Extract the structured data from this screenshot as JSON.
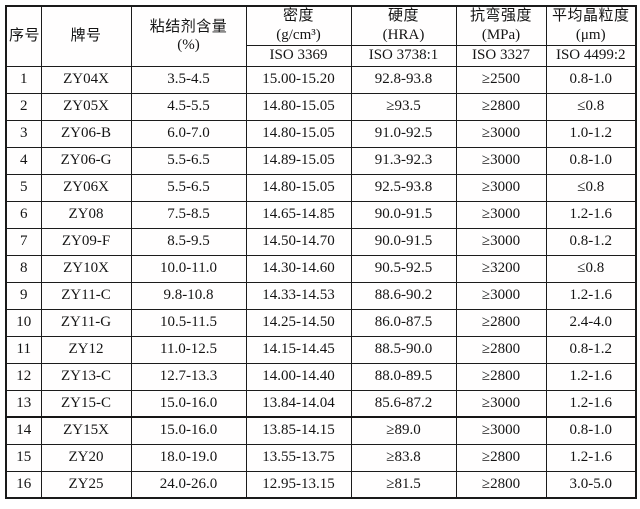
{
  "table": {
    "header": {
      "serial": "序号",
      "grade": "牌号",
      "binder_line1": "粘结剂含量",
      "binder_line2": "(%)",
      "density_line1": "密度",
      "density_line2": "(g/cm³)",
      "density_iso": "ISO 3369",
      "hardness_line1": "硬度",
      "hardness_line2": "(HRA)",
      "hardness_iso": "ISO 3738:1",
      "strength_line1": "抗弯强度",
      "strength_line2": "(MPa)",
      "strength_iso": "ISO 3327",
      "grain_line1": "平均晶粒度",
      "grain_line2": "(μm)",
      "grain_iso": "ISO 4499:2"
    },
    "rows": [
      {
        "no": "1",
        "grade": "ZY04X",
        "binder": "3.5-4.5",
        "density": "15.00-15.20",
        "hardness": "92.8-93.8",
        "strength": "≥2500",
        "grain": "0.8-1.0"
      },
      {
        "no": "2",
        "grade": "ZY05X",
        "binder": "4.5-5.5",
        "density": "14.80-15.05",
        "hardness": "≥93.5",
        "strength": "≥2800",
        "grain": "≤0.8"
      },
      {
        "no": "3",
        "grade": "ZY06-B",
        "binder": "6.0-7.0",
        "density": "14.80-15.05",
        "hardness": "91.0-92.5",
        "strength": "≥3000",
        "grain": "1.0-1.2"
      },
      {
        "no": "4",
        "grade": "ZY06-G",
        "binder": "5.5-6.5",
        "density": "14.89-15.05",
        "hardness": "91.3-92.3",
        "strength": "≥3000",
        "grain": "0.8-1.0"
      },
      {
        "no": "5",
        "grade": "ZY06X",
        "binder": "5.5-6.5",
        "density": "14.80-15.05",
        "hardness": "92.5-93.8",
        "strength": "≥3000",
        "grain": "≤0.8"
      },
      {
        "no": "6",
        "grade": "ZY08",
        "binder": "7.5-8.5",
        "density": "14.65-14.85",
        "hardness": "90.0-91.5",
        "strength": "≥3000",
        "grain": "1.2-1.6"
      },
      {
        "no": "7",
        "grade": "ZY09-F",
        "binder": "8.5-9.5",
        "density": "14.50-14.70",
        "hardness": "90.0-91.5",
        "strength": "≥3000",
        "grain": "0.8-1.2"
      },
      {
        "no": "8",
        "grade": "ZY10X",
        "binder": "10.0-11.0",
        "density": "14.30-14.60",
        "hardness": "90.5-92.5",
        "strength": "≥3200",
        "grain": "≤0.8"
      },
      {
        "no": "9",
        "grade": "ZY11-C",
        "binder": "9.8-10.8",
        "density": "14.33-14.53",
        "hardness": "88.6-90.2",
        "strength": "≥3000",
        "grain": "1.2-1.6"
      },
      {
        "no": "10",
        "grade": "ZY11-G",
        "binder": "10.5-11.5",
        "density": "14.25-14.50",
        "hardness": "86.0-87.5",
        "strength": "≥2800",
        "grain": "2.4-4.0"
      },
      {
        "no": "11",
        "grade": "ZY12",
        "binder": "11.0-12.5",
        "density": "14.15-14.45",
        "hardness": "88.5-90.0",
        "strength": "≥2800",
        "grain": "0.8-1.2"
      },
      {
        "no": "12",
        "grade": "ZY13-C",
        "binder": "12.7-13.3",
        "density": "14.00-14.40",
        "hardness": "88.0-89.5",
        "strength": "≥2800",
        "grain": "1.2-1.6"
      },
      {
        "no": "13",
        "grade": "ZY15-C",
        "binder": "15.0-16.0",
        "density": "13.84-14.04",
        "hardness": "85.6-87.2",
        "strength": "≥3000",
        "grain": "1.2-1.6"
      },
      {
        "no": "14",
        "grade": "ZY15X",
        "binder": "15.0-16.0",
        "density": "13.85-14.15",
        "hardness": "≥89.0",
        "strength": "≥3000",
        "grain": "0.8-1.0"
      },
      {
        "no": "15",
        "grade": "ZY20",
        "binder": "18.0-19.0",
        "density": "13.55-13.75",
        "hardness": "≥83.8",
        "strength": "≥2800",
        "grain": "1.2-1.6"
      },
      {
        "no": "16",
        "grade": "ZY25",
        "binder": "24.0-26.0",
        "density": "12.95-13.15",
        "hardness": "≥81.5",
        "strength": "≥2800",
        "grain": "3.0-5.0"
      }
    ]
  }
}
